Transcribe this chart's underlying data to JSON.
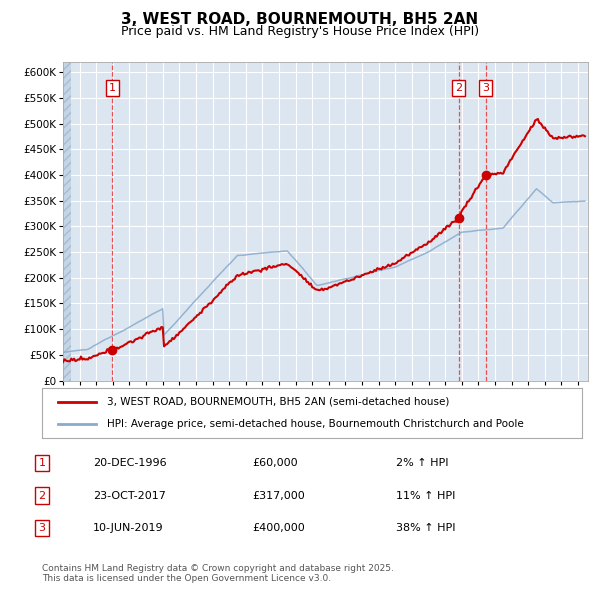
{
  "title": "3, WEST ROAD, BOURNEMOUTH, BH5 2AN",
  "subtitle": "Price paid vs. HM Land Registry's House Price Index (HPI)",
  "legend_label_red": "3, WEST ROAD, BOURNEMOUTH, BH5 2AN (semi-detached house)",
  "legend_label_blue": "HPI: Average price, semi-detached house, Bournemouth Christchurch and Poole",
  "footer": "Contains HM Land Registry data © Crown copyright and database right 2025.\nThis data is licensed under the Open Government Licence v3.0.",
  "sales": [
    {
      "label": "1",
      "date": "20-DEC-1996",
      "price": "£60,000",
      "hpi_pct": "2% ↑ HPI",
      "x_year": 1996.97,
      "price_raw": 60000
    },
    {
      "label": "2",
      "date": "23-OCT-2017",
      "price": "£317,000",
      "hpi_pct": "11% ↑ HPI",
      "x_year": 2017.81,
      "price_raw": 317000
    },
    {
      "label": "3",
      "date": "10-JUN-2019",
      "price": "£400,000",
      "hpi_pct": "38% ↑ HPI",
      "x_year": 2019.44,
      "price_raw": 400000
    }
  ],
  "plot_bg_color": "#dce6f1",
  "hatch_color": "#c5d5e8",
  "red_color": "#cc0000",
  "blue_color": "#88aacc",
  "vline_color": "#ee3333",
  "ylim": [
    0,
    620000
  ],
  "xlim_start": 1994.0,
  "xlim_end": 2025.6,
  "ytick_labels": [
    "£0",
    "£50K",
    "£100K",
    "£150K",
    "£200K",
    "£250K",
    "£300K",
    "£350K",
    "£400K",
    "£450K",
    "£500K",
    "£550K",
    "£600K"
  ],
  "ytick_vals": [
    0,
    50000,
    100000,
    150000,
    200000,
    250000,
    300000,
    350000,
    400000,
    450000,
    500000,
    550000,
    600000
  ]
}
